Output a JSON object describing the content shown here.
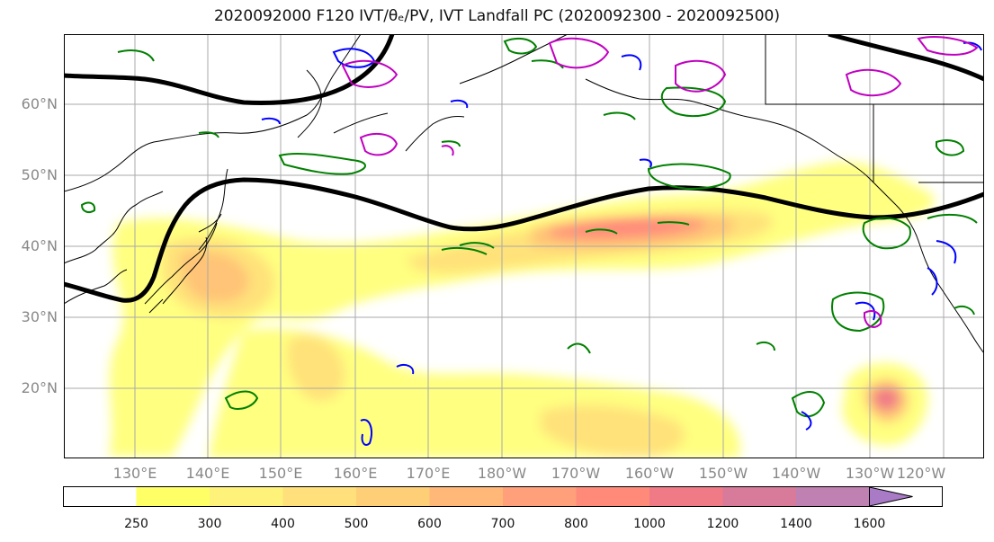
{
  "title": "2020092000 F120 IVT/θₑ/PV, IVT Landfall PC (2020092300 - 2020092500)",
  "x_ticks": [
    "130°E",
    "140°E",
    "150°E",
    "160°E",
    "170°E",
    "180°W",
    "170°W",
    "160°W",
    "150°W",
    "140°W",
    "130°W",
    "120°W"
  ],
  "y_ticks": [
    "60°N",
    "50°N",
    "40°N",
    "30°N",
    "20°N"
  ],
  "colorbar": {
    "levels": [
      250,
      300,
      400,
      500,
      600,
      700,
      800,
      1000,
      1200,
      1400,
      1600
    ],
    "colors": [
      "#ffffff",
      "#ffff66",
      "#fff27a",
      "#ffe07a",
      "#ffcf77",
      "#ffb877",
      "#ffa07a",
      "#ff8a7a",
      "#f07a86",
      "#d87a9a",
      "#bf80b2",
      "#a97ac6"
    ]
  },
  "colors": {
    "coast": "#000000",
    "jet": "#000000",
    "green_contour": "#008000",
    "blue_contour": "#0000ff",
    "magenta_contour": "#c000c0",
    "grid": "#aaaaaa"
  }
}
